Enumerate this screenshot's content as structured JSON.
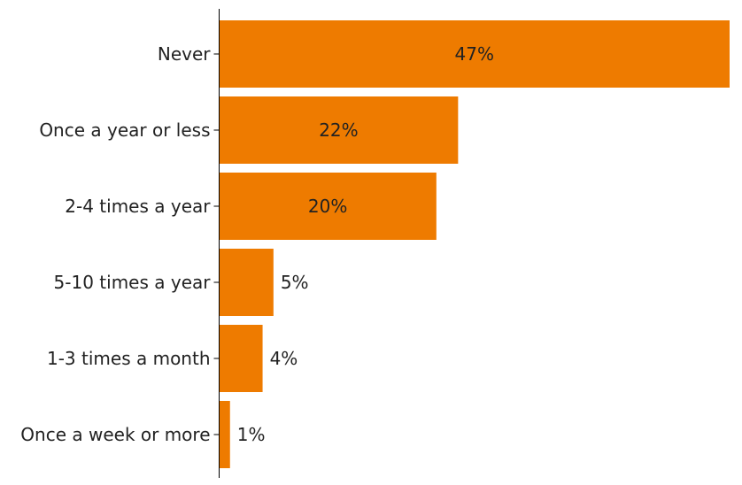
{
  "chart_data": {
    "type": "bar",
    "orientation": "horizontal",
    "categories": [
      "Never",
      "Once a year or less",
      "2-4 times a year",
      "5-10 times a year",
      "1-3 times a month",
      "Once a week or more"
    ],
    "values": [
      47,
      22,
      20,
      5,
      4,
      1
    ],
    "value_labels": [
      "47%",
      "22%",
      "20%",
      "5%",
      "4%",
      "1%"
    ],
    "unit": "%",
    "xlim": [
      0,
      47
    ],
    "grid": false,
    "legend": "none",
    "bar_color": "#EE7B00"
  }
}
